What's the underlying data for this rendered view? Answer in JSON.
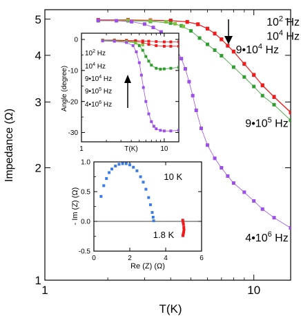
{
  "chart_data": [
    {
      "type": "scatter",
      "xlabel": "T(K)",
      "ylabel": "Impedance (Ω)",
      "xscale": "log",
      "yscale": "log",
      "xlim": [
        1,
        15
      ],
      "ylim": [
        1,
        5.3
      ],
      "xticks": [
        {
          "v": 1,
          "label": "1"
        },
        {
          "v": 10,
          "label": "10"
        }
      ],
      "yticks": [
        {
          "v": 1,
          "label": "1"
        },
        {
          "v": 2,
          "label": "2"
        },
        {
          "v": 3,
          "label": "3"
        },
        {
          "v": 4,
          "label": "4"
        },
        {
          "v": 5,
          "label": "5"
        }
      ],
      "grid": false,
      "arrow": "down",
      "series": [
        {
          "name": "10² Hz",
          "name_main": "10",
          "name_exp": "2",
          "name_unit": " Hz",
          "color": "#ee1c1c",
          "x": [
            1.8,
            2.5,
            3.2,
            4.0,
            4.8,
            5.4,
            6.0,
            6.5,
            7.0,
            7.5,
            8.0,
            9.0,
            10.0,
            11.0,
            12.5,
            15.0
          ],
          "y": [
            4.98,
            4.98,
            4.97,
            4.96,
            4.92,
            4.85,
            4.72,
            4.58,
            4.42,
            4.25,
            4.1,
            3.8,
            3.55,
            3.33,
            3.1,
            2.82
          ]
        },
        {
          "name": "10⁴ Hz",
          "name_main": "10",
          "name_exp": "4",
          "name_unit": " Hz",
          "color": "#ee1c1c",
          "x": [
            1.8,
            2.5,
            3.2,
            4.0,
            4.8,
            5.4,
            6.0,
            6.5,
            7.0,
            7.5,
            8.0,
            9.0,
            10.0,
            11.0,
            12.5,
            15.0
          ],
          "y": [
            4.97,
            4.97,
            4.96,
            4.95,
            4.91,
            4.84,
            4.71,
            4.57,
            4.41,
            4.24,
            4.09,
            3.79,
            3.54,
            3.32,
            3.09,
            2.81
          ]
        },
        {
          "name": "9•10⁴ Hz",
          "name_main": "9•10",
          "name_exp": "4",
          "name_unit": " Hz",
          "color": "#2e9e2e",
          "x": [
            1.8,
            2.5,
            3.2,
            4.0,
            4.5,
            5.0,
            5.5,
            6.0,
            6.5,
            7.0,
            8.0,
            9.0,
            10.0,
            11.0,
            12.5,
            15.0
          ],
          "y": [
            4.95,
            4.95,
            4.93,
            4.88,
            4.8,
            4.65,
            4.45,
            4.28,
            4.13,
            3.99,
            3.72,
            3.5,
            3.3,
            3.12,
            2.95,
            2.68
          ]
        },
        {
          "name": "9•10⁵ Hz",
          "name_main": "9•10",
          "name_exp": "5",
          "name_unit": " Hz",
          "color": "#7fbf3f",
          "x": [
            1.8,
            2.5,
            3.2,
            3.8,
            4.2,
            4.6
          ],
          "y": [
            4.96,
            4.96,
            4.95,
            4.92,
            4.86,
            4.78
          ]
        },
        {
          "name": "4•10⁶ Hz",
          "name_main": "4•10",
          "name_exp": "6",
          "name_unit": " Hz",
          "color": "#9b4fe6",
          "x": [
            1.8,
            2.2,
            2.6,
            3.0,
            3.3,
            3.6,
            3.9,
            4.1,
            4.3,
            4.5,
            4.7,
            4.9,
            5.1,
            5.3,
            5.6,
            6.0,
            6.5,
            7.0,
            7.5,
            8.0,
            9.0,
            10.0,
            11.0,
            12.5,
            15.0
          ],
          "y": [
            4.96,
            4.95,
            4.92,
            4.85,
            4.75,
            4.62,
            4.45,
            4.3,
            4.12,
            3.92,
            3.68,
            3.4,
            3.12,
            2.85,
            2.55,
            2.3,
            2.12,
            2.0,
            1.9,
            1.82,
            1.72,
            1.63,
            1.55,
            1.47,
            1.38
          ]
        }
      ],
      "labels": [
        {
          "series": 0,
          "x": 11.5,
          "y": 4.8
        },
        {
          "series": 1,
          "x": 11.5,
          "y": 4.4
        },
        {
          "series": 2,
          "x": 8.2,
          "y": 4.05
        },
        {
          "series": 3,
          "x": 9.1,
          "y": 2.57
        },
        {
          "series": 4,
          "x": 9.1,
          "y": 1.27
        }
      ]
    },
    {
      "type": "scatter",
      "xlabel": "T(K)",
      "ylabel": "Angle (degree)",
      "xscale": "log",
      "xlim": [
        1,
        15
      ],
      "ylim": [
        -33,
        2
      ],
      "xticks": [
        {
          "v": 1,
          "label": "1"
        },
        {
          "v": 10,
          "label": "10"
        }
      ],
      "yticks": [
        {
          "v": 0,
          "label": "0"
        },
        {
          "v": -10,
          "label": "-10"
        },
        {
          "v": -20,
          "label": "-20"
        },
        {
          "v": -30,
          "label": "-30"
        }
      ],
      "arrow": "up",
      "series": [
        {
          "name": "10² Hz",
          "name_main": "10",
          "name_exp": "2",
          "name_unit": " Hz",
          "color": "#ee1c1c",
          "x": [
            1.8,
            2.5,
            3.5,
            4.5,
            5.5,
            6.5,
            8.0,
            10.0,
            12.0,
            15.0
          ],
          "y": [
            -0.2,
            -0.2,
            -0.3,
            -0.4,
            -0.5,
            -0.6,
            -0.7,
            -0.8,
            -0.8,
            -0.8
          ]
        },
        {
          "name": "10⁴ Hz",
          "name_main": "10",
          "name_exp": "4",
          "name_unit": " Hz",
          "color": "#ee1c1c",
          "x": [
            1.8,
            2.5,
            3.5,
            4.5,
            5.5,
            6.5,
            8.0,
            10.0,
            12.0,
            15.0
          ],
          "y": [
            -0.3,
            -0.3,
            -0.4,
            -0.6,
            -1.0,
            -1.6,
            -2.0,
            -2.2,
            -2.2,
            -2.2
          ]
        },
        {
          "name": "9•10⁴ Hz",
          "name_main": "9•10",
          "name_exp": "4",
          "name_unit": " Hz",
          "color": "#2e9e2e",
          "x": [
            1.8,
            2.5,
            3.5,
            4.5,
            5.0,
            5.5,
            6.0,
            6.5,
            7.0,
            8.0,
            9.0,
            10.0,
            12.0,
            15.0
          ],
          "y": [
            -0.3,
            -0.4,
            -0.6,
            -1.0,
            -2.0,
            -3.5,
            -5.5,
            -7.0,
            -8.3,
            -9.3,
            -9.6,
            -9.5,
            -9.3,
            -9.0
          ]
        },
        {
          "name": "9•10⁵ Hz",
          "name_main": "9•10",
          "name_exp": "5",
          "name_unit": " Hz",
          "color": "#7fbf3f",
          "x": [
            1.8,
            2.5,
            3.5,
            4.5,
            5.5
          ],
          "y": [
            -0.4,
            -0.5,
            -0.7,
            -1.2,
            -1.8
          ]
        },
        {
          "name": "4•10⁶ Hz",
          "name_main": "4•10",
          "name_exp": "6",
          "name_unit": " Hz",
          "color": "#9b4fe6",
          "x": [
            1.8,
            2.5,
            3.5,
            4.2,
            4.6,
            5.0,
            5.3,
            5.6,
            6.0,
            6.5,
            7.0,
            7.5,
            8.0,
            9.0,
            10.0,
            12.0,
            15.0
          ],
          "y": [
            -0.5,
            -0.6,
            -1.0,
            -2.0,
            -4.0,
            -7.5,
            -11.5,
            -15.5,
            -20.0,
            -24.0,
            -26.5,
            -28.0,
            -28.8,
            -29.3,
            -29.5,
            -29.5,
            -29.3
          ]
        }
      ]
    },
    {
      "type": "scatter",
      "xlabel": "Re (Z) (Ω)",
      "ylabel": "- Im (Z) (Ω)",
      "xlim": [
        0,
        6
      ],
      "ylim": [
        -0.5,
        1.0
      ],
      "xticks": [
        {
          "v": 0,
          "label": "0"
        },
        {
          "v": 2,
          "label": "2"
        },
        {
          "v": 4,
          "label": "4"
        },
        {
          "v": 6,
          "label": "6"
        }
      ],
      "yticks": [
        {
          "v": -0.5,
          "label": "-0.5"
        },
        {
          "v": 0.0,
          "label": "0.0"
        },
        {
          "v": 0.5,
          "label": "0.5"
        },
        {
          "v": 1.0,
          "label": "1.0"
        }
      ],
      "zero_line": true,
      "series": [
        {
          "name": "10 K",
          "color": "#3b7be8",
          "x": [
            0.4,
            0.55,
            0.7,
            0.85,
            1.0,
            1.2,
            1.4,
            1.6,
            1.8,
            2.0,
            2.2,
            2.4,
            2.6,
            2.75,
            2.9,
            3.05,
            3.15,
            3.25,
            3.3,
            3.33
          ],
          "y": [
            0.42,
            0.6,
            0.72,
            0.82,
            0.88,
            0.93,
            0.96,
            0.97,
            0.97,
            0.95,
            0.91,
            0.85,
            0.75,
            0.66,
            0.54,
            0.4,
            0.28,
            0.15,
            0.07,
            0.01
          ]
        },
        {
          "name": "1.8 K",
          "color": "#ee1c1c",
          "x": [
            4.95,
            4.97,
            4.99,
            5.01,
            5.02,
            5.0,
            4.98,
            4.96
          ],
          "y": [
            0.02,
            -0.01,
            -0.05,
            -0.1,
            -0.14,
            -0.18,
            -0.21,
            -0.24
          ]
        }
      ],
      "labels": [
        {
          "series": 0,
          "x": 3.9,
          "y": 0.7
        },
        {
          "series": 1,
          "x": 3.3,
          "y": -0.28
        }
      ]
    }
  ]
}
